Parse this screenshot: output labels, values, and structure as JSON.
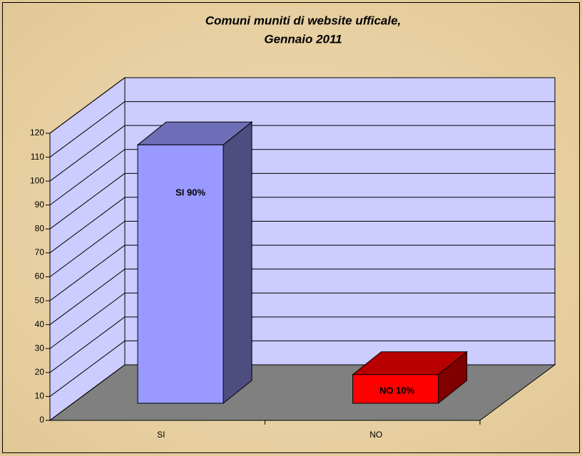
{
  "chart_data": {
    "type": "bar3d",
    "title": [
      "Comuni muniti di website ufficale,",
      "Gennaio 2011"
    ],
    "categories": [
      "SI",
      "NO"
    ],
    "values": [
      108,
      12
    ],
    "colors": [
      "#9999ff",
      "#ff0000"
    ],
    "annotations": [
      "SI 90%",
      "NO 10%"
    ],
    "ylim": [
      0,
      120
    ],
    "yticks": [
      0,
      10,
      20,
      30,
      40,
      50,
      60,
      70,
      80,
      90,
      100,
      110,
      120
    ],
    "grid": true
  }
}
